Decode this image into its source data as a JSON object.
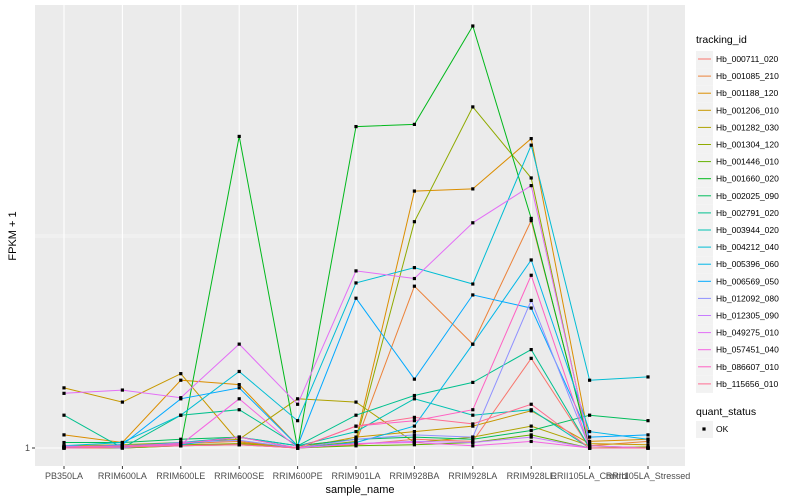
{
  "chart_data": {
    "type": "line",
    "xlabel": "sample_name",
    "ylabel": "FPKM + 1",
    "categories": [
      "PB350LA",
      "RRIM600LA",
      "RRIM600LE",
      "RRIM600SE",
      "RRIM600PE",
      "RRIM901LA",
      "RRIM928BA",
      "RRIM928LA",
      "RRIM928LE",
      "RRII105LA_Control",
      "RRII105LA_Stressed"
    ],
    "yticks": [
      1
    ],
    "ylim": [
      0.95,
      4.9
    ],
    "grid": true,
    "legend_title": "tracking_id",
    "legend_position": "right",
    "shape_legend": {
      "title": "quant_status",
      "items": [
        "OK"
      ]
    },
    "series": [
      {
        "name": "Hb_000711_020",
        "color": "#F8766D",
        "values": [
          1.0,
          1.0,
          1.02,
          1.04,
          1.0,
          1.03,
          1.08,
          1.06,
          1.82,
          1.0,
          1.0
        ]
      },
      {
        "name": "Hb_001085_210",
        "color": "#EC8239",
        "values": [
          1.01,
          1.01,
          1.04,
          1.06,
          1.0,
          1.05,
          2.48,
          1.95,
          3.08,
          1.02,
          1.06
        ]
      },
      {
        "name": "Hb_001188_120",
        "color": "#DB8E00",
        "values": [
          1.12,
          1.05,
          1.62,
          1.58,
          1.02,
          1.08,
          3.35,
          3.37,
          3.83,
          1.06,
          1.08
        ]
      },
      {
        "name": "Hb_001206_010",
        "color": "#C79800",
        "values": [
          1.55,
          1.42,
          1.68,
          1.05,
          1.0,
          1.1,
          1.15,
          1.2,
          1.34,
          1.04,
          1.03
        ]
      },
      {
        "name": "Hb_001282_030",
        "color": "#AEA200",
        "values": [
          1.02,
          1.03,
          1.05,
          1.08,
          1.45,
          1.42,
          1.05,
          1.1,
          1.2,
          1.02,
          1.0
        ]
      },
      {
        "name": "Hb_001304_120",
        "color": "#8FAA00",
        "values": [
          1.0,
          1.02,
          1.03,
          1.04,
          1.0,
          1.06,
          3.07,
          4.12,
          3.47,
          1.0,
          1.01
        ]
      },
      {
        "name": "Hb_001446_010",
        "color": "#64B200",
        "values": [
          1.01,
          1.0,
          1.02,
          1.03,
          1.0,
          1.02,
          1.03,
          1.05,
          1.12,
          1.0,
          1.0
        ]
      },
      {
        "name": "Hb_001660_020",
        "color": "#00B81B",
        "values": [
          1.0,
          1.01,
          1.03,
          3.85,
          1.0,
          3.94,
          3.96,
          4.86,
          3.1,
          1.0,
          1.0
        ]
      },
      {
        "name": "Hb_002025_090",
        "color": "#00BD5C",
        "values": [
          1.05,
          1.05,
          1.08,
          1.1,
          1.02,
          1.08,
          1.1,
          1.08,
          1.16,
          1.3,
          1.25
        ]
      },
      {
        "name": "Hb_002791_020",
        "color": "#00C08E",
        "values": [
          1.3,
          1.0,
          1.3,
          1.35,
          1.02,
          1.3,
          1.48,
          1.6,
          1.9,
          1.0,
          1.0
        ]
      },
      {
        "name": "Hb_003944_020",
        "color": "#00C1B2",
        "values": [
          1.0,
          1.02,
          1.05,
          1.1,
          1.02,
          1.15,
          1.45,
          1.3,
          1.35,
          1.0,
          1.0
        ]
      },
      {
        "name": "Hb_004212_040",
        "color": "#00BDD4",
        "values": [
          1.02,
          1.05,
          1.3,
          1.7,
          1.25,
          2.51,
          2.65,
          2.5,
          3.77,
          1.62,
          1.65
        ]
      },
      {
        "name": "Hb_005396_060",
        "color": "#00B7E8",
        "values": [
          1.01,
          1.02,
          1.03,
          1.1,
          1.0,
          1.05,
          1.2,
          1.95,
          2.72,
          1.15,
          1.08
        ]
      },
      {
        "name": "Hb_006569_050",
        "color": "#00A9FF",
        "values": [
          1.0,
          1.03,
          1.45,
          1.55,
          1.02,
          2.37,
          1.63,
          2.4,
          2.28,
          1.1,
          1.12
        ]
      },
      {
        "name": "Hb_012092_080",
        "color": "#8F91FF",
        "values": [
          1.02,
          1.0,
          1.05,
          1.07,
          1.0,
          1.08,
          1.12,
          1.1,
          2.35,
          1.0,
          1.0
        ]
      },
      {
        "name": "Hb_012305_090",
        "color": "#C77CFF",
        "values": [
          1.0,
          1.01,
          1.02,
          1.03,
          1.0,
          1.04,
          1.06,
          1.05,
          1.1,
          1.0,
          1.0
        ]
      },
      {
        "name": "Hb_049275_010",
        "color": "#E36EF6",
        "values": [
          1.5,
          1.53,
          1.46,
          1.95,
          1.4,
          2.62,
          2.55,
          3.06,
          3.4,
          1.02,
          1.0
        ]
      },
      {
        "name": "Hb_057451_040",
        "color": "#F564E3",
        "values": [
          1.0,
          1.01,
          1.03,
          1.45,
          1.0,
          1.04,
          1.05,
          1.02,
          1.06,
          1.0,
          1.0
        ]
      },
      {
        "name": "Hb_086607_010",
        "color": "#FF61C3",
        "values": [
          1.01,
          1.02,
          1.04,
          1.1,
          1.0,
          1.2,
          1.25,
          1.35,
          2.58,
          1.0,
          1.0
        ]
      },
      {
        "name": "Hb_115656_010",
        "color": "#FF6C91",
        "values": [
          1.0,
          1.01,
          1.02,
          1.03,
          1.0,
          1.2,
          1.28,
          1.22,
          1.4,
          1.0,
          1.0
        ]
      }
    ]
  }
}
